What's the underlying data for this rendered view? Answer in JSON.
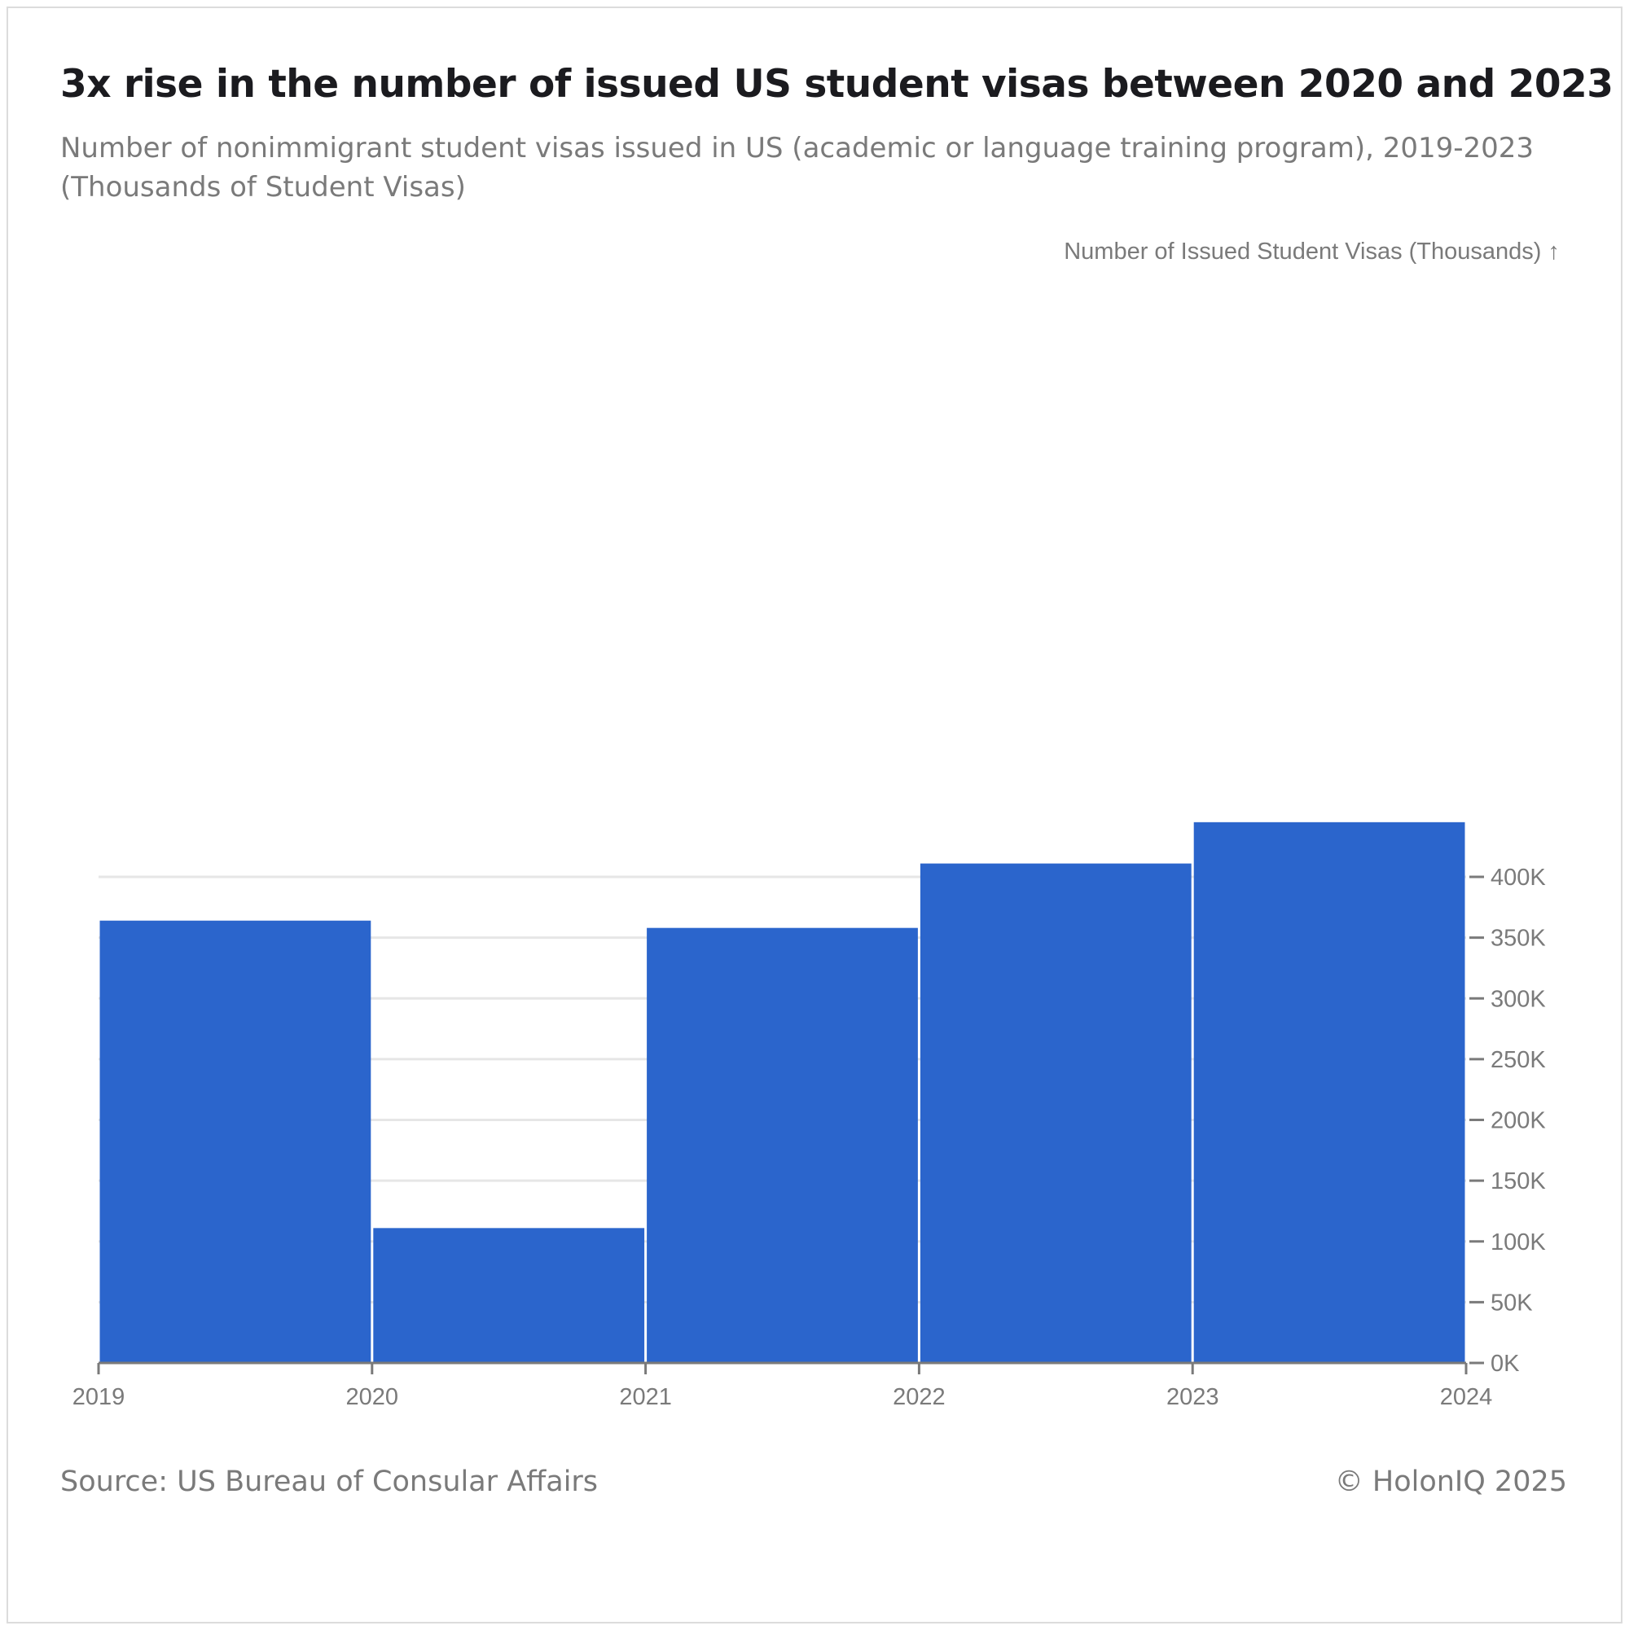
{
  "header": {
    "title": "3x rise in the number of issued US student visas between 2020 and 2023",
    "subtitle_line1": "Number of nonimmigrant student visas issued in US (academic or language training program), 2019-2023",
    "subtitle_line2": "(Thousands of Student Visas)"
  },
  "footer": {
    "source": "Source: US Bureau of Consular Affairs",
    "copyright": "© HolonIQ 2025"
  },
  "chart_data": {
    "type": "bar",
    "x_edges": [
      "2019",
      "2020",
      "2021",
      "2022",
      "2023",
      "2024"
    ],
    "categories": [
      "2019",
      "2020",
      "2021",
      "2022",
      "2023"
    ],
    "values": [
      364,
      111,
      358,
      411,
      445
    ],
    "ylabel": "Number of Issued Student Visas (Thousands) ↑",
    "yticks": [
      0,
      50,
      100,
      150,
      200,
      250,
      300,
      350,
      400
    ],
    "ytick_labels": [
      "0K",
      "50K",
      "100K",
      "150K",
      "200K",
      "250K",
      "300K",
      "350K",
      "400K"
    ],
    "ylim": [
      0,
      445
    ],
    "y_axis_side": "right",
    "grid": true,
    "bar_color": "#2b65cc",
    "grid_color": "#e6e6e6",
    "axis_color": "#7a7a7a"
  }
}
